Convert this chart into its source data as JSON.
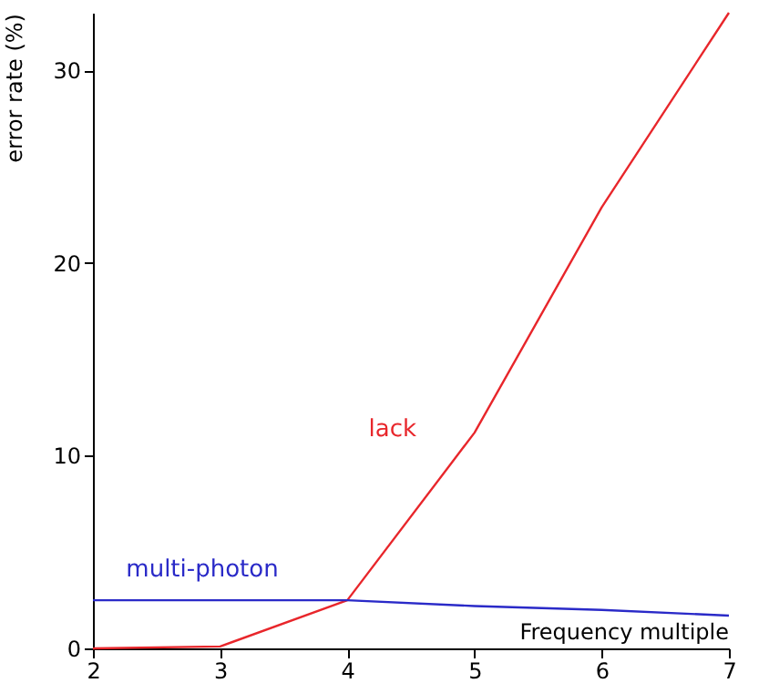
{
  "chart_data": {
    "type": "line",
    "xlabel": "Frequency multiple",
    "ylabel": "error rate (%)",
    "x": [
      2,
      3,
      4,
      5,
      6,
      7
    ],
    "series": [
      {
        "name": "lack",
        "color": "#e8262b",
        "values": [
          0,
          0.1,
          2.5,
          11.2,
          22.9,
          33
        ]
      },
      {
        "name": "multi-photon",
        "color": "#2a2ac8",
        "values": [
          2.5,
          2.5,
          2.5,
          2.2,
          2.0,
          1.7
        ]
      }
    ],
    "xlim": [
      2,
      7
    ],
    "ylim": [
      0,
      33
    ],
    "xticks": [
      2,
      3,
      4,
      5,
      6,
      7
    ],
    "yticks": [
      0,
      10,
      20,
      30
    ],
    "grid": false,
    "marker": "none",
    "line_style": "solid"
  }
}
